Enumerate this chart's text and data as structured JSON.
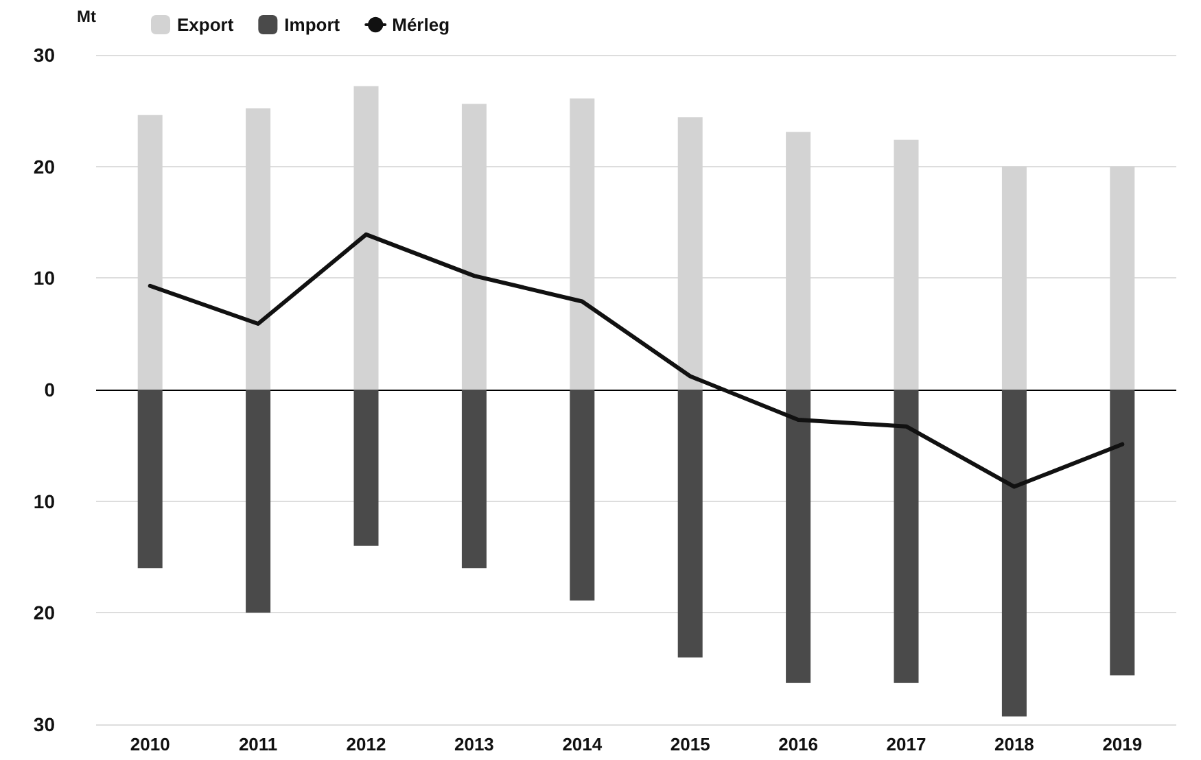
{
  "chart_data": {
    "type": "bar",
    "ylabel": "Mt",
    "categories": [
      "2010",
      "2011",
      "2012",
      "2013",
      "2014",
      "2015",
      "2016",
      "2017",
      "2018",
      "2019"
    ],
    "series": [
      {
        "name": "Export",
        "color": "#d3d3d3",
        "values": [
          24.6,
          25.2,
          27.2,
          25.6,
          26.1,
          24.4,
          23.1,
          22.4,
          20.0,
          20.0
        ]
      },
      {
        "name": "Import",
        "color": "#4a4a4a",
        "values": [
          -16.0,
          -20.0,
          -14.0,
          -16.0,
          -18.9,
          -24.0,
          -26.3,
          -26.3,
          -29.3,
          -25.6
        ]
      },
      {
        "name": "Mérleg",
        "type": "line",
        "color": "#111111",
        "values": [
          9.3,
          5.9,
          13.9,
          10.2,
          7.9,
          1.2,
          -2.7,
          -3.3,
          -8.7,
          -4.9
        ]
      }
    ],
    "ylim": [
      -30,
      30
    ],
    "yticks": [
      {
        "value": -30,
        "label": "30"
      },
      {
        "value": -20,
        "label": "20"
      },
      {
        "value": -10,
        "label": "10"
      },
      0,
      10,
      20,
      30
    ],
    "stacked": true,
    "grid": "y",
    "legend": "top left",
    "marker": "none",
    "line_style": "solid"
  }
}
